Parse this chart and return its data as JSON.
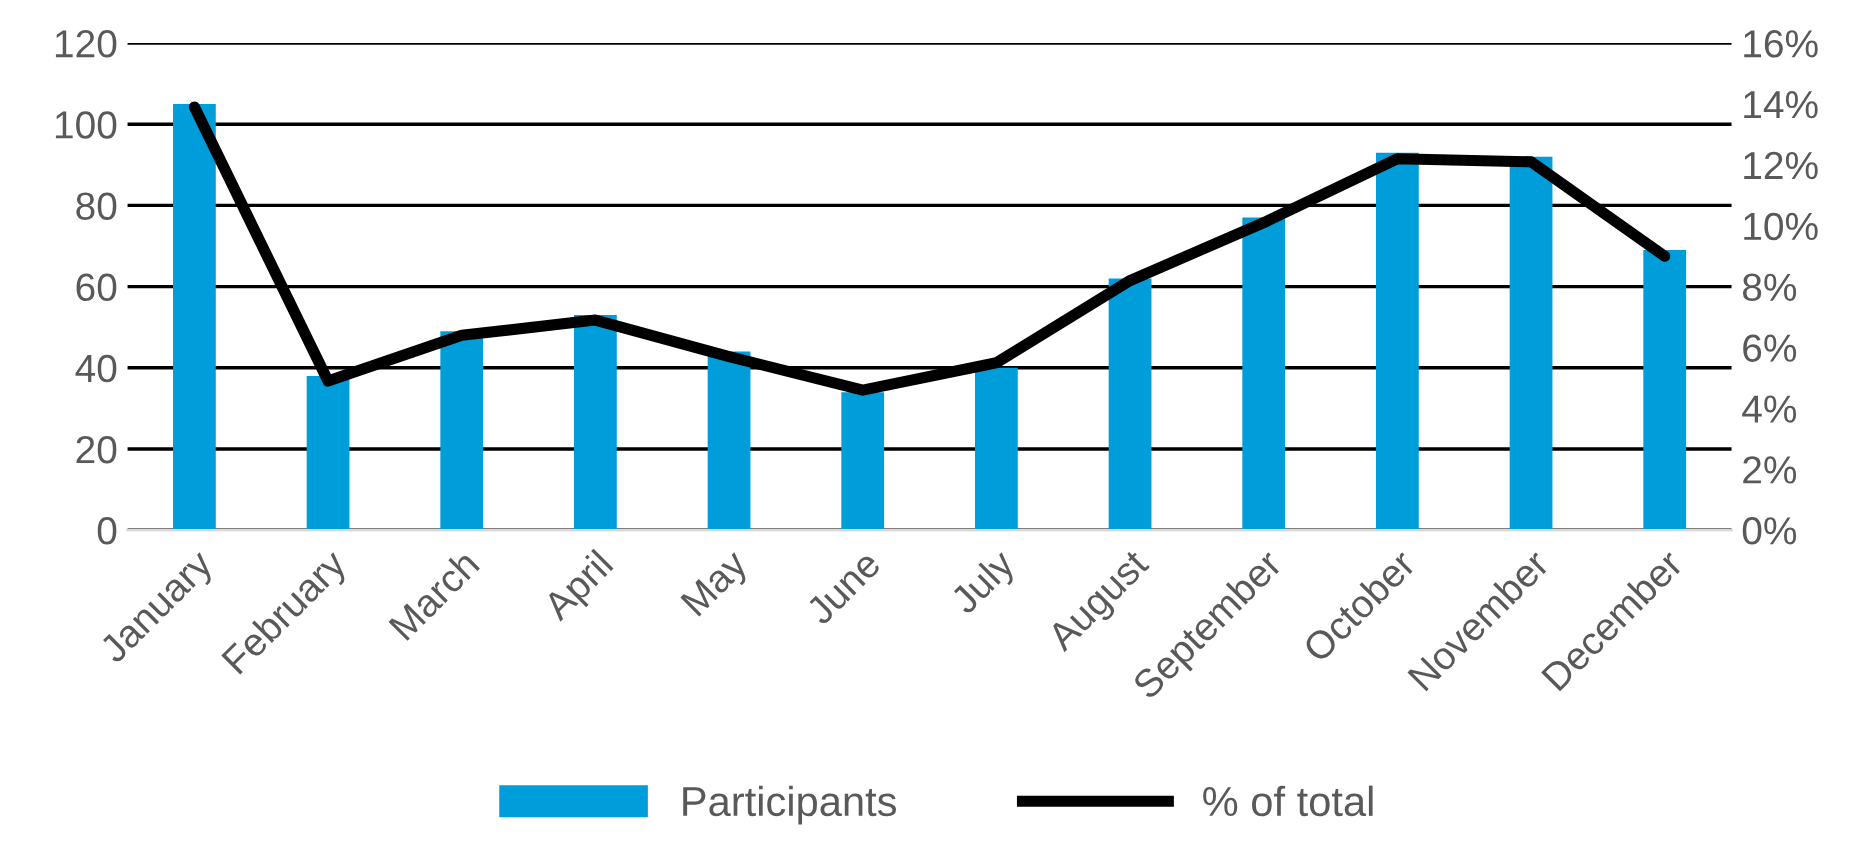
{
  "chart_data": {
    "type": "bar",
    "categories": [
      "January",
      "February",
      "March",
      "April",
      "May",
      "June",
      "July",
      "August",
      "September",
      "October",
      "November",
      "December"
    ],
    "series": [
      {
        "name": "Participants",
        "color": "#009ddb",
        "values": [
          105,
          38,
          49,
          53,
          44,
          34,
          40,
          62,
          77,
          93,
          92,
          69
        ]
      },
      {
        "name": "% of total",
        "type": "line",
        "axis": "y2",
        "color": "#000000",
        "values": [
          13.9,
          4.9,
          6.4,
          6.9,
          5.7,
          4.6,
          5.5,
          8.2,
          10.1,
          12.2,
          12.1,
          9.0
        ]
      }
    ],
    "ylim": [
      0,
      120
    ],
    "yticks": [
      0,
      20,
      40,
      60,
      80,
      100,
      120
    ],
    "y2lim": [
      0,
      16
    ],
    "y2ticks": [
      {
        "value": 0,
        "label": "0%"
      },
      {
        "value": 2,
        "label": "2%"
      },
      {
        "value": 4,
        "label": "4%"
      },
      {
        "value": 6,
        "label": "6%"
      },
      {
        "value": 8,
        "label": "8%"
      },
      {
        "value": 10,
        "label": "10%"
      },
      {
        "value": 12,
        "label": "12%"
      },
      {
        "value": 14,
        "label": "14%"
      },
      {
        "value": 16,
        "label": "16%"
      }
    ],
    "grid": "y",
    "legend": "bottom",
    "marker": "none",
    "line_style": "solid"
  }
}
